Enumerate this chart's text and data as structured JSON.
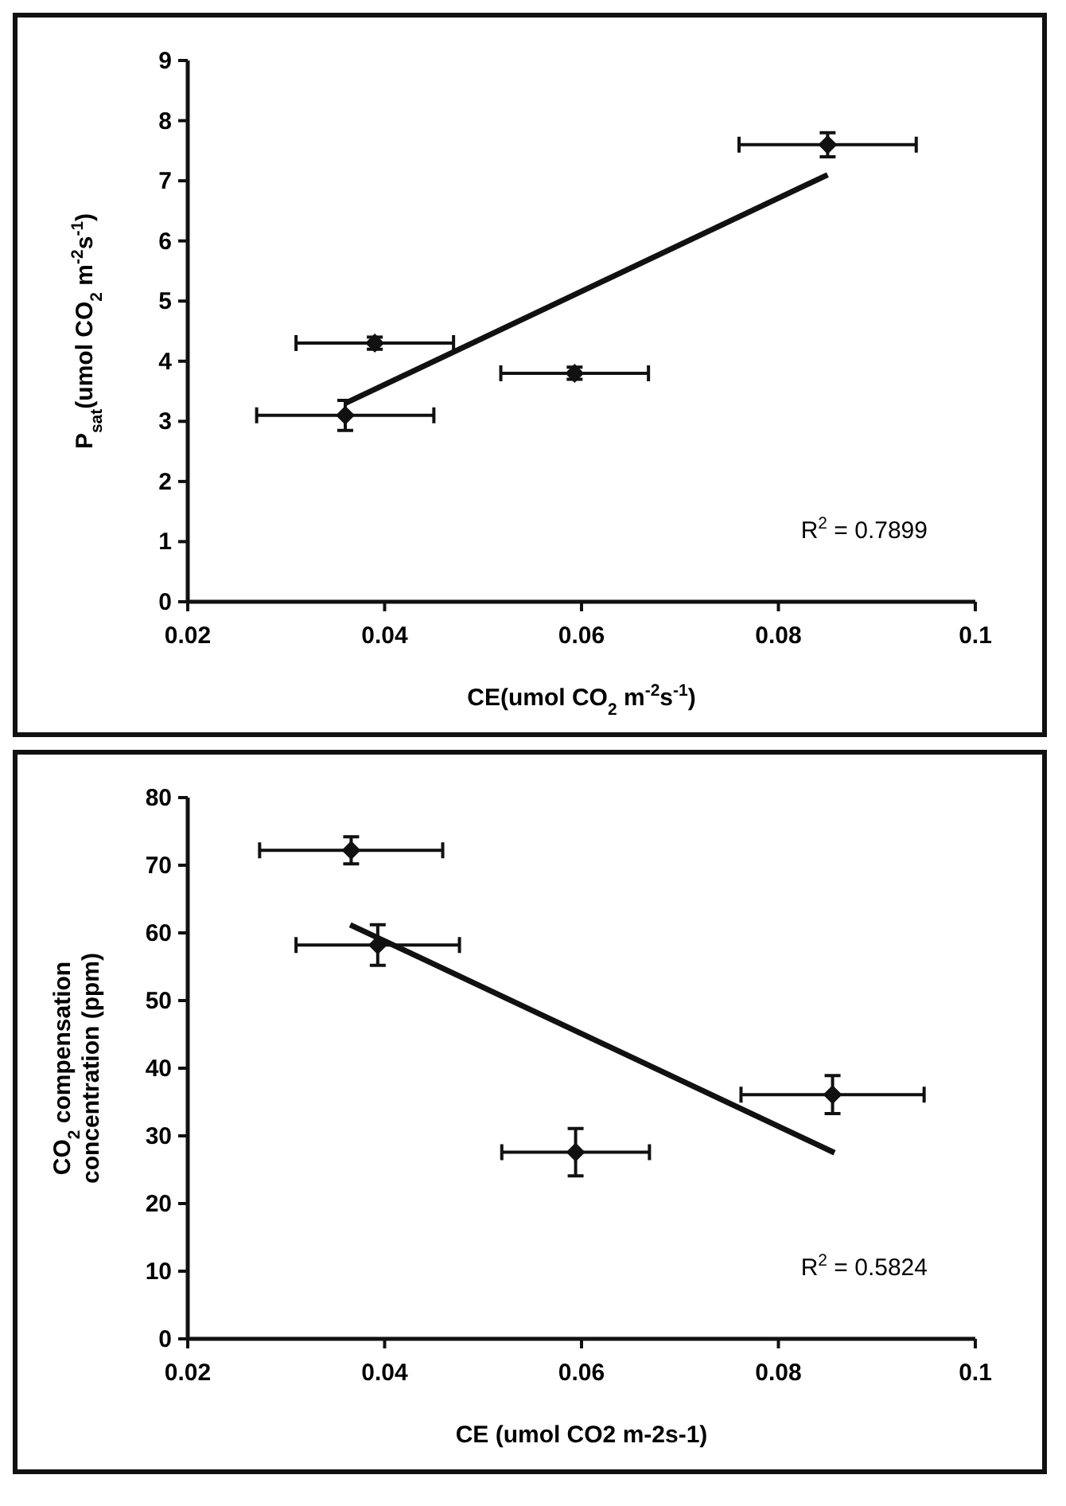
{
  "chart_data": [
    {
      "type": "scatter",
      "xlabel": "CE(umol CO$_{2}$ m$^{-2}$s$^{-1}$)",
      "ylabel": "P$_{sat}$(umol CO$_{2}$ m$^{-2}$s$^{-1}$)",
      "xlim": [
        0.02,
        0.1
      ],
      "xticks": [
        0.02,
        0.04,
        0.06,
        0.08,
        0.1
      ],
      "ylim": [
        0,
        9
      ],
      "yticks": [
        0,
        1,
        2,
        3,
        4,
        5,
        6,
        7,
        8,
        9
      ],
      "annotations": [
        "R$^{2}$ = 0.7899"
      ],
      "series": [
        {
          "type": "scatter",
          "marker": "diamond",
          "color": "#111111",
          "x": [
            0.036,
            0.039,
            0.0593,
            0.085
          ],
          "values": [
            3.1,
            4.3,
            3.8,
            7.6
          ],
          "errors": [
            0.25,
            0.1,
            0.1,
            0.2
          ],
          "xerrors": [
            0.009,
            0.008,
            0.0075,
            0.009
          ]
        },
        {
          "type": "line",
          "color": "#111111",
          "x": [
            0.036,
            0.085
          ],
          "values": [
            3.3,
            7.1
          ]
        }
      ]
    },
    {
      "type": "scatter",
      "xlabel": "CE (umol CO2 m-2s-1)",
      "ylabel": "CO$_{2}$ compensation concentration (ppm)",
      "xlim": [
        0.02,
        0.1
      ],
      "xticks": [
        0.02,
        0.04,
        0.06,
        0.08,
        0.1
      ],
      "ylim": [
        0,
        80
      ],
      "yticks": [
        0,
        10,
        20,
        30,
        40,
        50,
        60,
        70,
        80
      ],
      "annotations": [
        "R$^{2}$ = 0.5824"
      ],
      "series": [
        {
          "type": "scatter",
          "marker": "diamond",
          "color": "#111111",
          "x": [
            0.0366,
            0.0393,
            0.0594,
            0.0855
          ],
          "values": [
            72.2,
            58.2,
            27.6,
            36.1
          ],
          "errors": [
            2,
            3,
            3.5,
            2.8
          ],
          "xerrors": [
            0.0093,
            0.0083,
            0.0075,
            0.0093
          ]
        },
        {
          "type": "line",
          "color": "#111111",
          "x": [
            0.0365,
            0.0857
          ],
          "values": [
            61.2,
            27.5
          ]
        }
      ]
    }
  ]
}
